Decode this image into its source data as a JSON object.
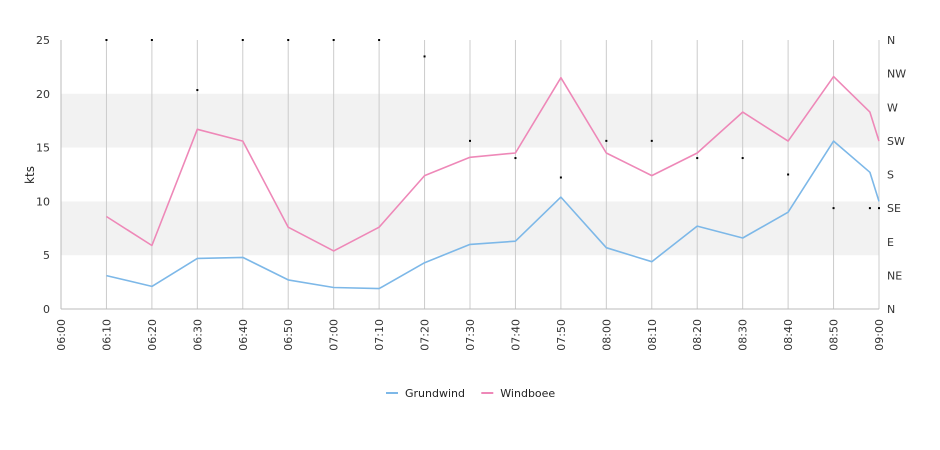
{
  "chart_data": {
    "type": "line",
    "title": "",
    "xlabel": "",
    "ylabel": "kts",
    "x": [
      "06:00",
      "06:10",
      "06:20",
      "06:30",
      "06:40",
      "06:50",
      "07:00",
      "07:10",
      "07:20",
      "07:30",
      "07:40",
      "07:50",
      "08:00",
      "08:10",
      "08:20",
      "08:30",
      "08:40",
      "08:50",
      "09:00"
    ],
    "ylim": [
      0,
      25
    ],
    "y_ticks": [
      0,
      5,
      10,
      15,
      20,
      25
    ],
    "grid": true,
    "legend_position": "bottom",
    "series": [
      {
        "name": "Grundwind",
        "color": "#7db8e8",
        "points": [
          [
            "06:10",
            3.1
          ],
          [
            "06:20",
            2.1
          ],
          [
            "06:30",
            4.7
          ],
          [
            "06:40",
            4.8
          ],
          [
            "06:50",
            2.7
          ],
          [
            "07:00",
            2.0
          ],
          [
            "07:10",
            1.9
          ],
          [
            "07:20",
            4.3
          ],
          [
            "07:30",
            6.0
          ],
          [
            "07:40",
            6.3
          ],
          [
            "07:50",
            10.4
          ],
          [
            "08:00",
            5.7
          ],
          [
            "08:10",
            4.4
          ],
          [
            "08:20",
            7.7
          ],
          [
            "08:30",
            6.6
          ],
          [
            "08:40",
            9.0
          ],
          [
            "08:50",
            15.6
          ],
          [
            "08:58",
            12.7
          ],
          [
            "09:00",
            10.0
          ]
        ]
      },
      {
        "name": "Windboee",
        "color": "#ee88b8",
        "points": [
          [
            "06:10",
            8.6
          ],
          [
            "06:20",
            5.9
          ],
          [
            "06:30",
            16.7
          ],
          [
            "06:40",
            15.6
          ],
          [
            "06:50",
            7.6
          ],
          [
            "07:00",
            5.4
          ],
          [
            "07:10",
            7.6
          ],
          [
            "07:20",
            12.4
          ],
          [
            "07:30",
            14.1
          ],
          [
            "07:40",
            14.5
          ],
          [
            "07:50",
            21.5
          ],
          [
            "08:00",
            14.5
          ],
          [
            "08:10",
            12.4
          ],
          [
            "08:20",
            14.5
          ],
          [
            "08:30",
            18.3
          ],
          [
            "08:40",
            15.6
          ],
          [
            "08:50",
            21.6
          ],
          [
            "08:58",
            18.3
          ],
          [
            "09:00",
            15.6
          ]
        ]
      }
    ],
    "direction_axis": {
      "labels": [
        "N",
        "NE",
        "E",
        "SE",
        "S",
        "SW",
        "W",
        "NW",
        "N"
      ],
      "range": [
        0,
        360
      ],
      "points": [
        [
          "06:10",
          360
        ],
        [
          "06:20",
          360
        ],
        [
          "06:30",
          293
        ],
        [
          "06:40",
          360
        ],
        [
          "06:50",
          360
        ],
        [
          "07:00",
          360
        ],
        [
          "07:10",
          360
        ],
        [
          "07:20",
          338
        ],
        [
          "07:30",
          225
        ],
        [
          "07:40",
          202
        ],
        [
          "07:50",
          176
        ],
        [
          "08:00",
          225
        ],
        [
          "08:10",
          225
        ],
        [
          "08:20",
          202
        ],
        [
          "08:30",
          202
        ],
        [
          "08:40",
          180
        ],
        [
          "08:50",
          135
        ],
        [
          "08:58",
          135
        ],
        [
          "09:00",
          135
        ]
      ]
    }
  }
}
